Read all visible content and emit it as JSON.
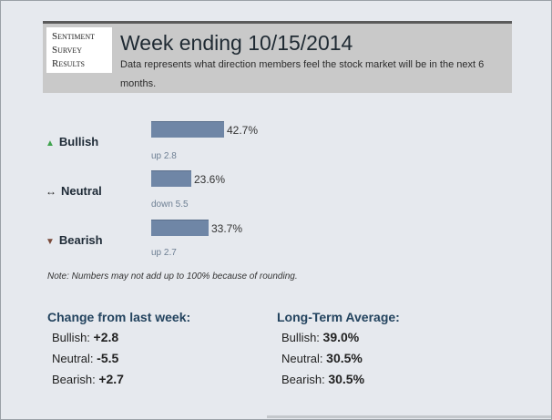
{
  "header": {
    "logo_lines": [
      "Sentiment",
      "Survey",
      "Results"
    ],
    "title": "Week ending 10/15/2014",
    "description": "Data represents what direction members feel the stock market will be in the next 6 months."
  },
  "rows": [
    {
      "icon": "arrow-up-icon",
      "label": "Bullish",
      "percent_label": "42.7%",
      "percent": 42.7,
      "change": "up 2.8"
    },
    {
      "icon": "arrow-left-right-icon",
      "label": "Neutral",
      "percent_label": "23.6%",
      "percent": 23.6,
      "change": "down 5.5"
    },
    {
      "icon": "arrow-down-icon",
      "label": "Bearish",
      "percent_label": "33.7%",
      "percent": 33.7,
      "change": "up 2.7"
    }
  ],
  "note": "Note: Numbers may not add up to 100% because of rounding.",
  "change_from_last_week": {
    "title": "Change from last week:",
    "items": [
      {
        "label": "Bullish:",
        "value": "+2.8"
      },
      {
        "label": "Neutral:",
        "value": "-5.5"
      },
      {
        "label": "Bearish:",
        "value": "+2.7"
      }
    ]
  },
  "long_term_average": {
    "title": "Long-Term Average:",
    "items": [
      {
        "label": "Bullish:",
        "value": "39.0%"
      },
      {
        "label": "Neutral:",
        "value": "30.5%"
      },
      {
        "label": "Bearish:",
        "value": "30.5%"
      }
    ]
  },
  "colors": {
    "bar": "#6f86a6",
    "bullish_arrow": "#3fa34d",
    "bearish_arrow": "#7a4a3a",
    "section_title": "#23435e",
    "header_bg": "#c9c9c9"
  }
}
